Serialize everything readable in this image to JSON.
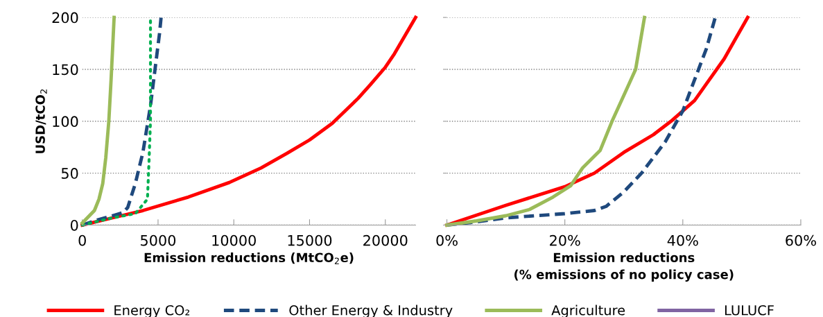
{
  "chart_data": [
    {
      "type": "line",
      "xlabel": "Emission reductions (MtCO$_{2}$e)",
      "ylabel": "USD/tCO$_{2}$",
      "xlim": [
        0,
        22000
      ],
      "xticks": [
        0,
        5000,
        10000,
        15000,
        20000
      ],
      "ylim": [
        0,
        200
      ],
      "yticks": [
        0,
        50,
        100,
        150,
        200
      ],
      "grid": "y",
      "legend": "bottom",
      "series": [
        {
          "name": "Energy CO₂",
          "color": "#ff0000",
          "line_style": "solid",
          "x": [
            0,
            2000,
            4000,
            7000,
            9700,
            11800,
            13500,
            15000,
            16500,
            18200,
            19000,
            20000,
            20600,
            22000
          ],
          "values": [
            0,
            7,
            14,
            27,
            41,
            55,
            69,
            82,
            98,
            122,
            135,
            152,
            165,
            200
          ]
        },
        {
          "name": "Other Energy & Industry",
          "color": "#1f497d",
          "line_style": "dashed",
          "x": [
            0,
            1000,
            2000,
            2700,
            3000,
            3500,
            4000,
            4500,
            4800,
            5100,
            5200
          ],
          "values": [
            0,
            5,
            9,
            12,
            17,
            40,
            70,
            115,
            150,
            185,
            200
          ]
        },
        {
          "color": "#00b050",
          "line_style": "dotted",
          "x": [
            0,
            2000,
            3500,
            4300,
            4400,
            4500,
            4500,
            4500
          ],
          "values": [
            0,
            7,
            11,
            25,
            60,
            100,
            150,
            200
          ]
        },
        {
          "name": "Agriculture",
          "color": "#9bbb59",
          "line_style": "solid",
          "x": [
            0,
            800,
            1100,
            1350,
            1550,
            1750,
            1900,
            2000,
            2100
          ],
          "values": [
            2,
            14,
            25,
            40,
            65,
            100,
            140,
            170,
            200
          ]
        },
        {
          "name": "LULUCF",
          "color": "#8064a2",
          "line_style": "solid"
        }
      ]
    },
    {
      "type": "line",
      "xlabel": "Emission reductions\n(% emissions of no policy case)",
      "xlim": [
        0,
        60
      ],
      "xticks": [
        {
          "value": 0,
          "label": "0%"
        },
        {
          "value": 20,
          "label": "20%"
        },
        {
          "value": 40,
          "label": "40%"
        },
        {
          "value": 60,
          "label": "60%"
        }
      ],
      "ylim": [
        0,
        200
      ],
      "yticks": [
        0,
        50,
        100,
        150,
        200
      ],
      "grid": "y",
      "tick_labels": "x",
      "series": [
        {
          "color": "#ff0000",
          "line_style": "solid",
          "x": [
            0,
            10,
            20,
            25,
            30,
            35,
            38,
            42,
            44,
            47,
            49,
            51
          ],
          "values": [
            0,
            19,
            37,
            50,
            70,
            87,
            100,
            120,
            136,
            160,
            180,
            200
          ]
        },
        {
          "color": "#1f497d",
          "line_style": "dashed",
          "x": [
            0,
            5,
            10,
            15,
            20,
            25,
            27,
            30,
            33,
            37,
            40,
            42,
            44,
            45.5
          ],
          "values": [
            0,
            3,
            7,
            9,
            11,
            14,
            18,
            32,
            50,
            80,
            110,
            140,
            170,
            200
          ]
        },
        {
          "color": "#9bbb59",
          "line_style": "solid",
          "x": [
            0,
            5,
            10,
            14,
            18,
            21,
            23,
            26,
            28,
            30,
            32,
            33.5
          ],
          "values": [
            0,
            4,
            9,
            15,
            27,
            38,
            55,
            72,
            100,
            125,
            150,
            200
          ]
        }
      ]
    }
  ]
}
